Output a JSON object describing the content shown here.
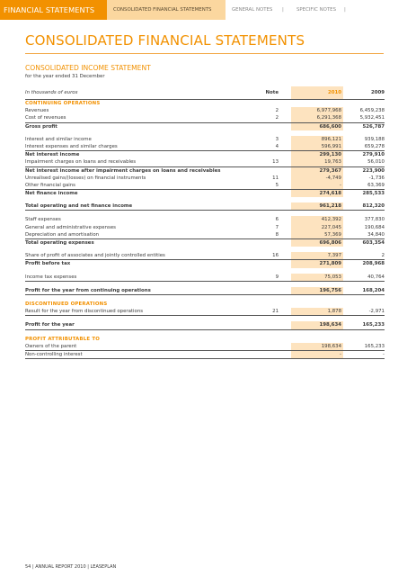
{
  "header": {
    "main_tab": "FINANCIAL STATEMENTS",
    "consolidated_tab": "CONSOLIDATED FINANCIAL STATEMENTS",
    "general_notes_tab": "GENERAL NOTES",
    "specific_notes_tab": "SPECIFIC NOTES",
    "separator": "|"
  },
  "page_title": "CONSOLIDATED FINANCIAL STATEMENTS",
  "section": {
    "title": "CONSOLIDATED INCOME STATEMENT",
    "subtitle": "for the year ended 31 December"
  },
  "table": {
    "head": {
      "label": "In thousands of euros",
      "note": "Note",
      "y1": "2010",
      "y2": "2009"
    },
    "rows": [
      {
        "kind": "sec",
        "label": "CONTINUING OPERATIONS"
      },
      {
        "kind": "row",
        "label": "Revenues",
        "note": "2",
        "v1": "6,977,968",
        "v2": "6,459,238"
      },
      {
        "kind": "row line",
        "label": "Cost of revenues",
        "note": "2",
        "v1": "6,291,368",
        "v2": "5,932,451"
      },
      {
        "kind": "row bold",
        "label": "Gross profit",
        "note": "",
        "v1": "686,600",
        "v2": "526,787"
      },
      {
        "kind": "spacer"
      },
      {
        "kind": "row",
        "label": "Interest and similar income",
        "note": "3",
        "v1": "896,121",
        "v2": "939,188"
      },
      {
        "kind": "row line",
        "label": "Interest expenses and similar charges",
        "note": "4",
        "v1": "596,991",
        "v2": "659,278"
      },
      {
        "kind": "row bold",
        "label": "Net interest income",
        "note": "",
        "v1": "299,130",
        "v2": "279,910"
      },
      {
        "kind": "row line",
        "label": "Impairment charges on loans and receivables",
        "note": "13",
        "v1": "19,763",
        "v2": "56,010"
      },
      {
        "kind": "row bold",
        "label": "Net interest income after impairment charges on loans and receivables",
        "note": "",
        "v1": "279,367",
        "v2": "223,900"
      },
      {
        "kind": "row",
        "label": "Unrealised gains/(losses) on financial instruments",
        "note": "11",
        "v1": "-4,749",
        "v2": "-1,736"
      },
      {
        "kind": "row line",
        "label": "Other financial gains",
        "note": "5",
        "v1": "-",
        "v2": "63,369"
      },
      {
        "kind": "row bold",
        "label": "Net finance income",
        "note": "",
        "v1": "274,618",
        "v2": "285,533"
      },
      {
        "kind": "spacer"
      },
      {
        "kind": "row bold bg-line",
        "label": "Total operating and net finance income",
        "note": "",
        "v1": "961,218",
        "v2": "812,320"
      },
      {
        "kind": "spacer"
      },
      {
        "kind": "row",
        "label": "Staff expenses",
        "note": "6",
        "v1": "412,392",
        "v2": "377,830"
      },
      {
        "kind": "row",
        "label": "General and administrative expenses",
        "note": "7",
        "v1": "227,045",
        "v2": "190,684"
      },
      {
        "kind": "row line",
        "label": "Depreciation and amortisation",
        "note": "8",
        "v1": "57,369",
        "v2": "34,840"
      },
      {
        "kind": "row bold",
        "label": "Total operating expenses",
        "note": "",
        "v1": "696,806",
        "v2": "603,354"
      },
      {
        "kind": "spacer"
      },
      {
        "kind": "row line",
        "label": "Share of profit of associates and jointly controlled entities",
        "note": "16",
        "v1": "7,397",
        "v2": "2"
      },
      {
        "kind": "row bold",
        "label": "Profit before tax",
        "note": "",
        "v1": "271,809",
        "v2": "208,968"
      },
      {
        "kind": "spacer"
      },
      {
        "kind": "row line",
        "label": "Income tax expenses",
        "note": "9",
        "v1": "75,053",
        "v2": "40,764"
      },
      {
        "kind": "spacer"
      },
      {
        "kind": "row bold bg-line",
        "label": "Profit for the year from continuing operations",
        "note": "",
        "v1": "196,756",
        "v2": "168,204"
      },
      {
        "kind": "spacer"
      },
      {
        "kind": "sec",
        "label": "DISCONTINUED OPERATIONS"
      },
      {
        "kind": "row line",
        "label": "Result for the year from discontinued operations",
        "note": "21",
        "v1": "1,878",
        "v2": "-2,971"
      },
      {
        "kind": "spacer"
      },
      {
        "kind": "row bold bg-line",
        "label": "Profit for the year",
        "note": "",
        "v1": "198,634",
        "v2": "165,233"
      },
      {
        "kind": "spacer"
      },
      {
        "kind": "sec",
        "label": "PROFIT ATTRIBUTABLE TO"
      },
      {
        "kind": "row line",
        "label": "Owners of the parent",
        "note": "",
        "v1": "198,634",
        "v2": "165,233"
      },
      {
        "kind": "row line",
        "label": "Non-controlling interest",
        "note": "",
        "v1": "-",
        "v2": "-"
      }
    ]
  },
  "footer": "54 | ANNUAL REPORT 2010 | LEASEPLAN",
  "colors": {
    "accent": "#f29100",
    "light_accent": "#fde3bf",
    "tab_light": "#fbd79f"
  }
}
